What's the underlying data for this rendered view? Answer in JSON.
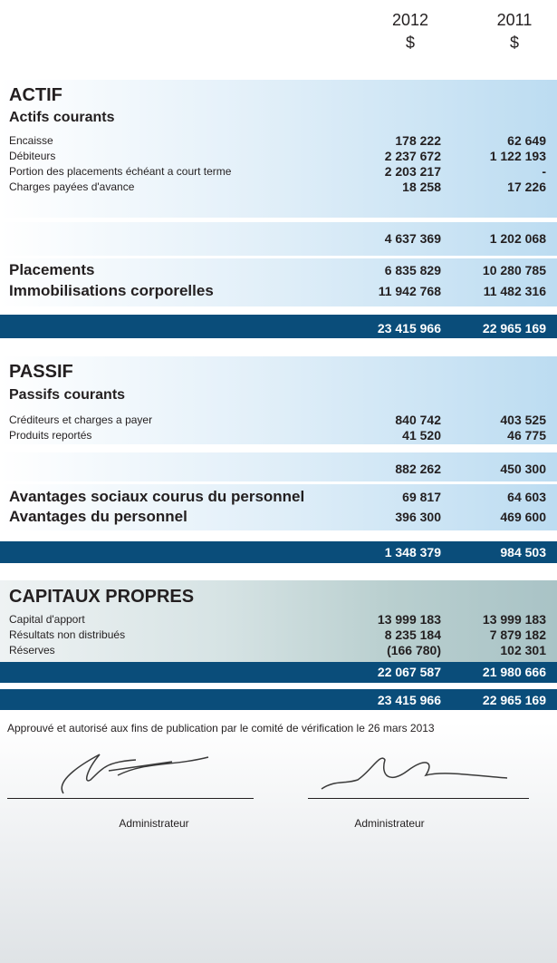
{
  "header": {
    "columns": [
      {
        "year": "2012",
        "unit": "$"
      },
      {
        "year": "2011",
        "unit": "$"
      }
    ]
  },
  "actif": {
    "title": "ACTIF",
    "subtitle": "Actifs courants",
    "rows": [
      {
        "label": "Encaisse",
        "values": [
          "178 222",
          "62 649"
        ]
      },
      {
        "label": "Débiteurs",
        "values": [
          "2 237 672",
          "1 122 193"
        ]
      },
      {
        "label": "Portion des placements échéant a court terme",
        "values": [
          "2 203 217",
          "-"
        ]
      },
      {
        "label": "Charges payées d'avance",
        "values": [
          "18 258",
          "17 226"
        ]
      }
    ],
    "subtotal": [
      "4 637 369",
      "1 202 068"
    ],
    "major_rows": [
      {
        "label": "Placements",
        "values": [
          "6 835 829",
          "10 280 785"
        ]
      },
      {
        "label": "Immobilisations corporelles",
        "values": [
          "11 942 768",
          "11 482 316"
        ]
      }
    ],
    "total": [
      "23 415 966",
      "22 965 169"
    ]
  },
  "passif": {
    "title": "PASSIF",
    "subtitle": "Passifs courants",
    "rows": [
      {
        "label": "Créditeurs et charges a payer",
        "values": [
          "840 742",
          "403 525"
        ]
      },
      {
        "label": "Produits reportés",
        "values": [
          "41 520",
          "46 775"
        ]
      }
    ],
    "subtotal": [
      "882 262",
      "450 300"
    ],
    "major_rows": [
      {
        "label": "Avantages sociaux courus du personnel",
        "values": [
          "69 817",
          "64 603"
        ]
      },
      {
        "label": "Avantages du personnel",
        "values": [
          "396 300",
          "469 600"
        ]
      }
    ],
    "total": [
      "1 348 379",
      "984 503"
    ]
  },
  "capitaux_propres": {
    "title": "CAPITAUX PROPRES",
    "rows": [
      {
        "label": "Capital d'apport",
        "values": [
          "13 999 183",
          "13 999 183"
        ]
      },
      {
        "label": "Résultats non distribués",
        "values": [
          "8 235 184",
          "7 879 182"
        ]
      },
      {
        "label": "Réserves",
        "values": [
          "(166 780)",
          "102 301"
        ]
      }
    ],
    "subtotal": [
      "22 067 587",
      "21 980 666"
    ],
    "total": [
      "23 415 966",
      "22 965 169"
    ]
  },
  "footer": {
    "approval": "Approuvé et autorisé aux fins de publication par le comité de vérification le 26 mars 2013",
    "signatures": [
      "Administrateur",
      "Administrateur"
    ]
  }
}
